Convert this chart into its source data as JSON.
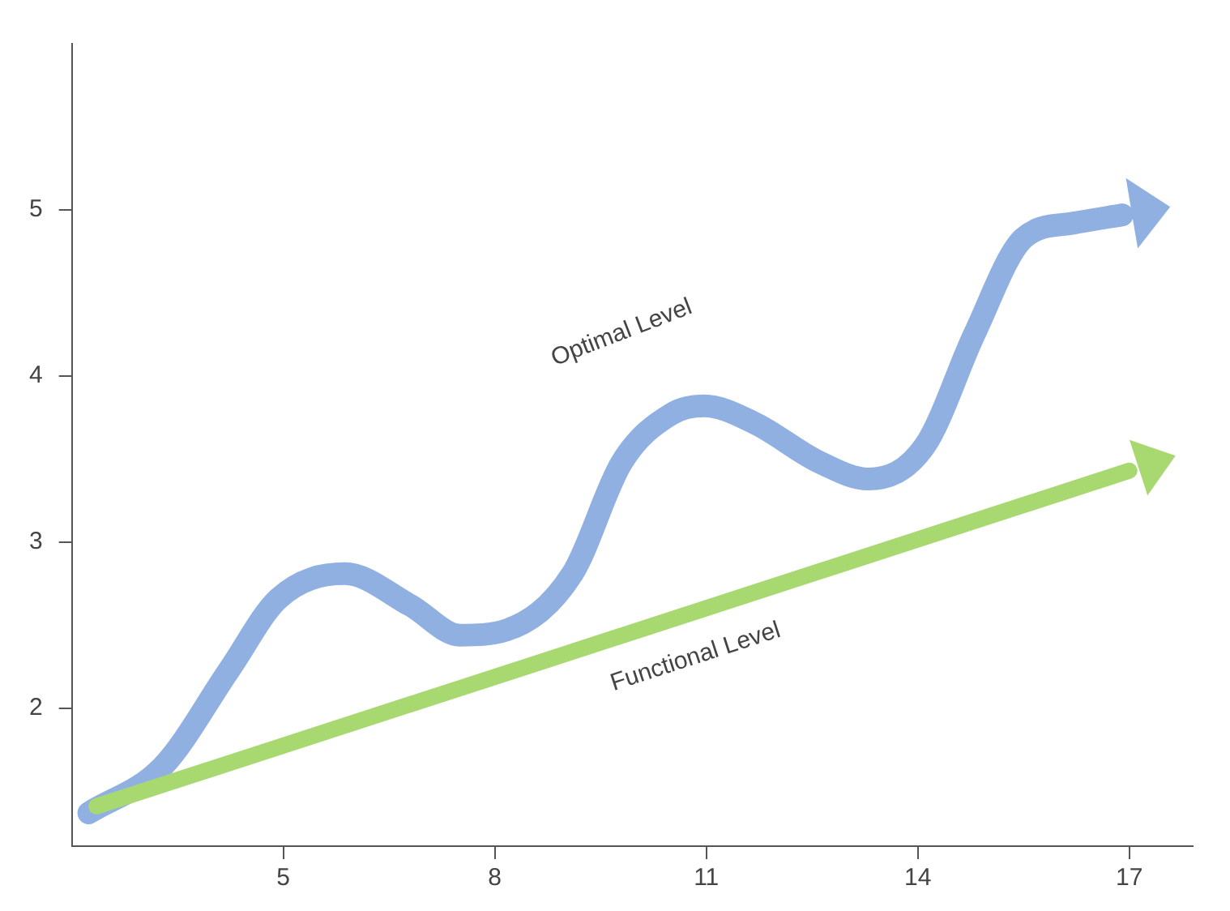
{
  "chart_data": {
    "type": "line",
    "relative": false,
    "xlim": [
      2,
      17.9
    ],
    "xticks": [
      5,
      8,
      11,
      14,
      17
    ],
    "ylim": [
      1.17,
      6
    ],
    "yticks": [
      2,
      3,
      4,
      5
    ],
    "grid": false,
    "legend": false,
    "line_style": "solid",
    "series": [
      {
        "name": "Optimal Level",
        "color": "#8fb0e0",
        "x": [
          2.24,
          3.29,
          4.23,
          4.93,
          5.87,
          6.8,
          7.51,
          8.16,
          9.1,
          9.8,
          10.5,
          10.97,
          11.67,
          12.61,
          13.3,
          14.1,
          14.8,
          15.5,
          16.2,
          16.9
        ],
        "values": [
          1.37,
          1.65,
          2.23,
          2.66,
          2.81,
          2.62,
          2.44,
          2.47,
          2.81,
          3.48,
          3.77,
          3.82,
          3.72,
          3.48,
          3.38,
          3.58,
          4.25,
          4.83,
          4.92,
          4.97
        ]
      },
      {
        "name": "Functional Level",
        "color": "#a8d870",
        "x": [
          2.35,
          17
        ],
        "values": [
          1.41,
          3.43
        ]
      }
    ]
  }
}
